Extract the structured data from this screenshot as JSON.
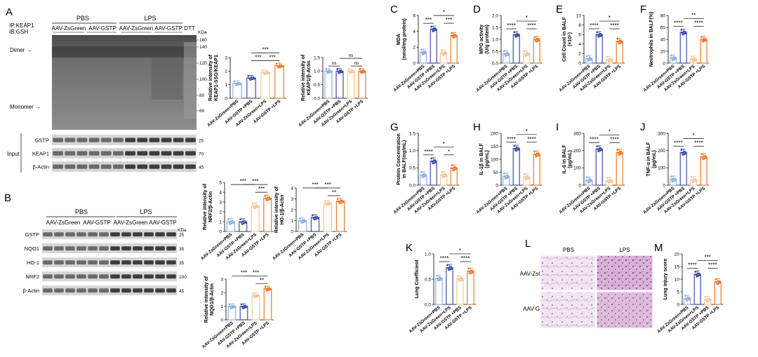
{
  "colors": {
    "c1": "#8fb0e2",
    "c2": "#3d4ea6",
    "c3": "#f8c59a",
    "c4": "#ee7a2c",
    "sig": "#000000"
  },
  "groups_full": [
    "AAV-ZsGreen+PBS",
    "AAV-GSTP +PBS",
    "AAV-ZsGreen+LPS",
    "AAV-GSTP +LPS"
  ],
  "groups_k": [
    "AAV-ZsGreen+PBS",
    "AAV-ZsGreen+LPS",
    "AAV-GSTP +PBS",
    "AAV-GSTP +LPS"
  ],
  "panelA": {
    "letter": "A",
    "ip_label": "IP:KEAP1",
    "ib_label": "IB:GSH",
    "pbs": "PBS",
    "lps": "LPS",
    "zsgreen": "AAV-ZsGreen",
    "gstp": "AAV-GSTP",
    "dtt": "DTT",
    "kda": "KDa",
    "dimer": "Dimer →",
    "monomer": "Monomer →",
    "markers": [
      "180",
      "140",
      "120",
      "100",
      "80",
      "60"
    ],
    "input": "Input",
    "blots": [
      "GSTP",
      "KEAP1",
      "β-Actin"
    ],
    "blot_markers": [
      "25",
      "70",
      "45"
    ]
  },
  "panelB": {
    "letter": "B",
    "pbs": "PBS",
    "lps": "LPS",
    "zsgreen": "AAV-ZsGreen",
    "gstp": "AAV-GSTP",
    "kda": "KDa",
    "blots": [
      "GSTP",
      "NQO1",
      "HO-1",
      "NRF2",
      "β-Actin"
    ],
    "blot_markers": [
      "25",
      "35",
      "35",
      "100",
      "45"
    ]
  },
  "panelL": {
    "letter": "L",
    "pbs": "PBS",
    "lps": "LPS",
    "rows": [
      "AAV-ZsGreen",
      "AAV-GSTP"
    ]
  },
  "chart_data": [
    {
      "id": "A1",
      "type": "bar",
      "ylabel": "Relative intensity of\nKEAP1-SSG/KEAP1",
      "ylim": [
        0,
        3
      ],
      "ticks": [
        "0",
        "1",
        "2",
        "3"
      ],
      "values": [
        1.1,
        1.5,
        1.9,
        2.4
      ],
      "sig": [
        [
          "***",
          2,
          3
        ],
        [
          "***",
          1,
          2
        ],
        [
          "***",
          1,
          3
        ]
      ],
      "labels": "full"
    },
    {
      "id": "A2",
      "type": "bar",
      "ylabel": "Relative intensity of\nKEAP1/β-Actin",
      "ylim": [
        0,
        1.5
      ],
      "ticks": [
        "0.0",
        "0.5",
        "1.0",
        "1.5"
      ],
      "values": [
        1.0,
        1.0,
        1.0,
        1.0
      ],
      "sig": [
        [
          "ns",
          0,
          1
        ],
        [
          "ns",
          2,
          3
        ],
        [
          "ns",
          1,
          3
        ]
      ],
      "labels": "full"
    },
    {
      "id": "B1",
      "type": "bar",
      "ylabel": "Relative intensity of\nNRF2/β-Actin",
      "ylim": [
        0,
        5
      ],
      "ticks": [
        "0",
        "1",
        "2",
        "3",
        "4",
        "5"
      ],
      "values": [
        1.0,
        1.0,
        2.6,
        3.4
      ],
      "sig": [
        [
          "***",
          0,
          2
        ],
        [
          "***",
          2,
          3
        ],
        [
          "***",
          1,
          3
        ]
      ],
      "labels": "full"
    },
    {
      "id": "B2",
      "type": "bar",
      "ylabel": "Relative intensity of\nHO-1/β-Actin",
      "ylim": [
        0,
        4
      ],
      "ticks": [
        "0",
        "1",
        "2",
        "3",
        "4"
      ],
      "values": [
        1.0,
        1.3,
        2.6,
        2.8
      ],
      "sig": [
        [
          "***",
          0,
          2
        ],
        [
          "**",
          2,
          3
        ],
        [
          "***",
          1,
          3
        ]
      ],
      "labels": "full"
    },
    {
      "id": "B3",
      "type": "bar",
      "ylabel": "Relative intensity of\nNQO1/β-Actin",
      "ylim": [
        0,
        3
      ],
      "ticks": [
        "0",
        "1",
        "2",
        "3"
      ],
      "values": [
        1.0,
        1.0,
        1.8,
        2.3
      ],
      "sig": [
        [
          "***",
          0,
          2
        ],
        [
          "**",
          2,
          3
        ],
        [
          "***",
          1,
          3
        ]
      ],
      "labels": "full"
    },
    {
      "id": "C",
      "letter": "C",
      "type": "bar",
      "ylabel": "MDA\n(nmol/mg protein)",
      "ylim": [
        0,
        6
      ],
      "ticks": [
        "0",
        "2",
        "4",
        "6"
      ],
      "values": [
        1.4,
        4.3,
        1.3,
        3.5
      ],
      "sig": [
        [
          "***",
          0,
          1
        ],
        [
          "***",
          2,
          3
        ],
        [
          "*",
          1,
          3
        ]
      ],
      "labels": "full"
    },
    {
      "id": "D",
      "letter": "D",
      "type": "bar",
      "ylabel": "MPO activity\n(U/g protein)",
      "ylim": [
        0,
        2.0
      ],
      "ticks": [
        "0.0",
        "0.5",
        "1.0",
        "1.5",
        "2.0"
      ],
      "values": [
        0.4,
        1.2,
        0.4,
        1.0
      ],
      "sig": [
        [
          "****",
          0,
          1
        ],
        [
          "****",
          2,
          3
        ],
        [
          "*",
          1,
          3
        ]
      ],
      "labels": "full"
    },
    {
      "id": "E",
      "letter": "E",
      "type": "bar",
      "ylabel": "Cell Count in BALF\n(×10⁵)",
      "ylim": [
        0,
        10
      ],
      "ticks": [
        "0",
        "2",
        "4",
        "6",
        "8",
        "10"
      ],
      "values": [
        1.0,
        6.0,
        0.8,
        4.6
      ],
      "sig": [
        [
          "****",
          0,
          1
        ],
        [
          "****",
          2,
          3
        ],
        [
          "*",
          1,
          3
        ]
      ],
      "labels": "full"
    },
    {
      "id": "F",
      "letter": "F",
      "type": "bar",
      "ylabel": "Neutrophils in BALF(%)",
      "ylim": [
        0,
        80
      ],
      "ticks": [
        "0",
        "20",
        "40",
        "60",
        "80"
      ],
      "values": [
        9,
        52,
        7,
        40
      ],
      "sig": [
        [
          "****",
          0,
          1
        ],
        [
          "****",
          2,
          3
        ],
        [
          "**",
          1,
          3
        ]
      ],
      "labels": "full"
    },
    {
      "id": "G",
      "letter": "G",
      "type": "bar",
      "ylabel": "Protein Concentration\nin BALF(mg/mL)",
      "ylim": [
        0,
        1.5
      ],
      "ticks": [
        "0.0",
        "0.5",
        "1.0",
        "1.5"
      ],
      "values": [
        0.3,
        0.7,
        0.3,
        0.5
      ],
      "sig": [
        [
          "****",
          0,
          1
        ],
        [
          "*",
          2,
          3
        ],
        [
          "*",
          1,
          3
        ]
      ],
      "labels": "full"
    },
    {
      "id": "H",
      "letter": "H",
      "type": "bar",
      "ylabel": "IL-1β in BALF\n(pg/mL)",
      "ylim": [
        0,
        200
      ],
      "ticks": [
        "0",
        "50",
        "100",
        "150",
        "200"
      ],
      "values": [
        35,
        142,
        32,
        120
      ],
      "sig": [
        [
          "****",
          0,
          1
        ],
        [
          "****",
          2,
          3
        ],
        [
          "*",
          1,
          3
        ]
      ],
      "labels": "full"
    },
    {
      "id": "I",
      "letter": "I",
      "type": "bar",
      "ylabel": "IL-6 in BALF\n(pg/mL)",
      "ylim": [
        0,
        300
      ],
      "ticks": [
        "0",
        "100",
        "200",
        "300"
      ],
      "values": [
        30,
        210,
        28,
        190
      ],
      "sig": [
        [
          "****",
          0,
          1
        ],
        [
          "****",
          2,
          3
        ],
        [
          "*",
          1,
          3
        ]
      ],
      "labels": "full"
    },
    {
      "id": "J",
      "letter": "J",
      "type": "bar",
      "ylabel": "TNF-α in BALF\n(pg/mL)",
      "ylim": [
        0,
        300
      ],
      "ticks": [
        "0",
        "100",
        "200",
        "300"
      ],
      "values": [
        35,
        190,
        32,
        165
      ],
      "sig": [
        [
          "****",
          0,
          1
        ],
        [
          "****",
          2,
          3
        ],
        [
          "*",
          1,
          3
        ]
      ],
      "labels": "full"
    },
    {
      "id": "K",
      "letter": "K",
      "type": "bar",
      "ylabel": "Lung Coefficient",
      "ylim": [
        0,
        1.0
      ],
      "ticks": [
        "0.0",
        "0.5",
        "1.0"
      ],
      "values": [
        0.52,
        0.73,
        0.51,
        0.66
      ],
      "sig": [
        [
          "****",
          0,
          1
        ],
        [
          "****",
          2,
          3
        ],
        [
          "*",
          1,
          3
        ]
      ],
      "labels": "k"
    },
    {
      "id": "M",
      "letter": "M",
      "type": "bar",
      "ylabel": "Lung injury score",
      "ylim": [
        0,
        20
      ],
      "ticks": [
        "0",
        "5",
        "10",
        "15",
        "20"
      ],
      "values": [
        2.5,
        12,
        2,
        9
      ],
      "sig": [
        [
          "****",
          0,
          1
        ],
        [
          "****",
          2,
          3
        ],
        [
          "***",
          1,
          3
        ]
      ],
      "labels": "k"
    }
  ]
}
